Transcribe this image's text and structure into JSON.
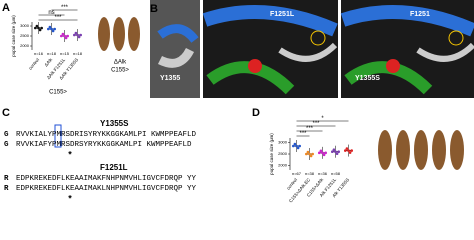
{
  "panels": {
    "A": {
      "label": "A",
      "y_label": "pupal case size (μm)",
      "ylim": [
        1800,
        3200
      ],
      "yticks": [
        2000,
        2500,
        3000
      ],
      "groups": [
        {
          "name": "control",
          "color": "#111111",
          "mean": 2900,
          "n_label": "n=16"
        },
        {
          "name": "ΔAlk",
          "color": "#2255cc",
          "mean": 2850,
          "n_label": "n=18"
        },
        {
          "name": "ΔAlk F1251L",
          "color": "#cc22cc",
          "mean": 2500,
          "n_label": "n=15"
        },
        {
          "name": "ΔAlk Y1355S",
          "color": "#7a3fb0",
          "mean": 2550,
          "n_label": "n=18"
        }
      ],
      "significance": [
        "***",
        "ns",
        "***"
      ],
      "driver": "C155>",
      "photo_labels": [
        "ΔAlk",
        "C155>"
      ]
    },
    "B": {
      "label": "B",
      "labels": [
        "Y1355",
        "F1251L",
        "Y1355S",
        "F1251"
      ]
    },
    "C": {
      "label": "C",
      "blocks": [
        {
          "title": "Y1355S",
          "rows": [
            {
              "prefix": "G",
              "seq": "RVVKIALYPMRSDRISYRYKKGGKAMLPI KWMPPEAFLD"
            },
            {
              "prefix": "G",
              "seq": "RVVKIAFYPMRSDRSYRYKKGGKAMLPI KWMPPEAFLD"
            }
          ],
          "mark": "*"
        },
        {
          "title": "F1251L",
          "rows": [
            {
              "prefix": "R",
              "seq": "EDPKREKEDFLKEAAIMAKFNHPNMVHLIGVCFDRQP YY"
            },
            {
              "prefix": "R",
              "seq": "EDPKREKEDFLKEAAIMAKLNHPNMVHLIGVCFDRQP YY"
            }
          ],
          "mark": "*"
        }
      ]
    },
    "D": {
      "label": "D",
      "y_label": "pupal case size (μm)",
      "ylim": [
        1800,
        3200
      ],
      "yticks": [
        2000,
        2500,
        3000
      ],
      "groups": [
        {
          "name": "control",
          "color": "#2255cc",
          "mean": 2850,
          "n_label": "n=67"
        },
        {
          "name": "C155>ΔAlk.EC",
          "color": "#ee8822",
          "mean": 2500,
          "n_label": "n=38"
        },
        {
          "name": "C155>ΔAlk",
          "color": "#cc22cc",
          "mean": 2550,
          "n_label": "n=36"
        },
        {
          "name": "Alk F1251L",
          "color": "#7a3fb0",
          "mean": 2600,
          "n_label": "n=58"
        },
        {
          "name": "Alk Y1355S",
          "color": "#dd2222",
          "mean": 2650,
          "n_label": null
        }
      ],
      "significance": [
        "***",
        "***",
        "***",
        "*"
      ]
    }
  }
}
